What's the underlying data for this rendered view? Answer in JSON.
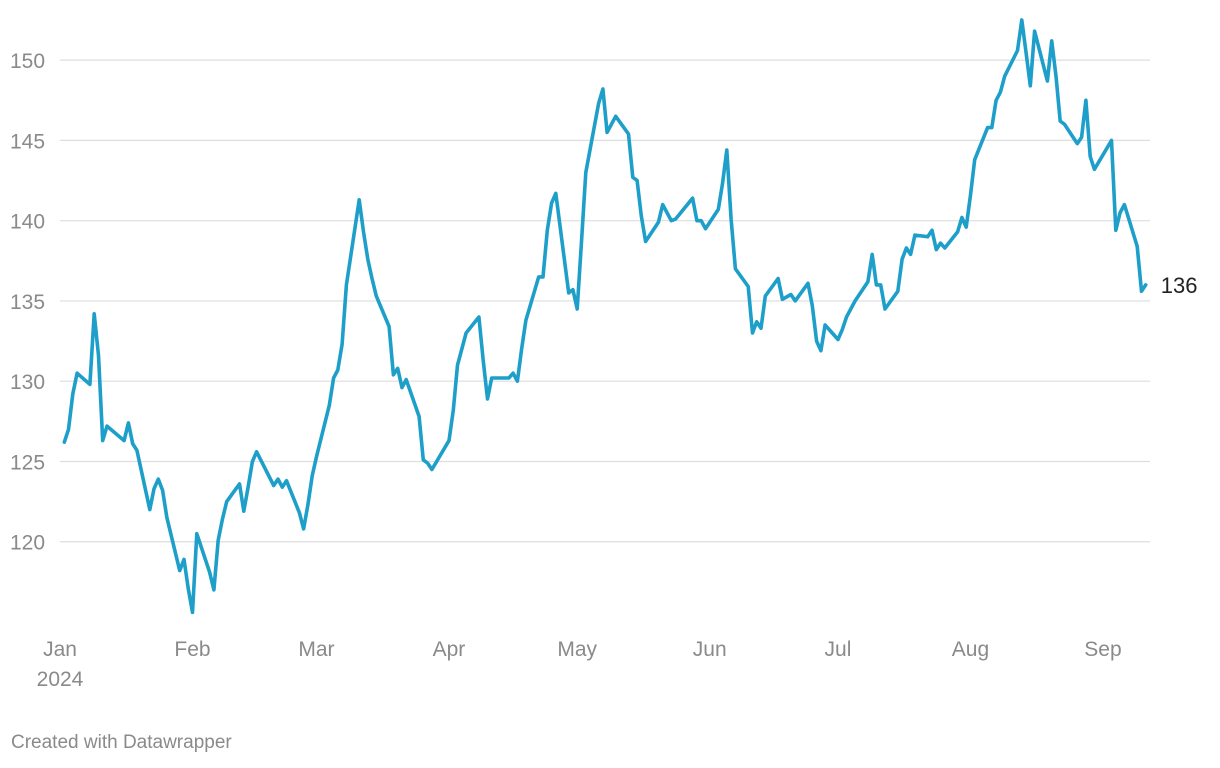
{
  "chart_data": {
    "type": "line",
    "title": "",
    "xlabel": "",
    "ylabel": "",
    "grid": "horizontal",
    "legend": "none",
    "color": "#1d9fca",
    "ylim": [
      115,
      152.5
    ],
    "xlim": [
      "2024-01-01",
      "2024-09-12"
    ],
    "y_ticks": [
      120,
      125,
      130,
      135,
      140,
      145,
      150
    ],
    "x_ticks": [
      {
        "date": "2024-01-01",
        "label": "Jan",
        "sublabel": "2024"
      },
      {
        "date": "2024-02-01",
        "label": "Feb"
      },
      {
        "date": "2024-03-01",
        "label": "Mar"
      },
      {
        "date": "2024-04-01",
        "label": "Apr"
      },
      {
        "date": "2024-05-01",
        "label": "May"
      },
      {
        "date": "2024-06-01",
        "label": "Jun"
      },
      {
        "date": "2024-07-01",
        "label": "Jul"
      },
      {
        "date": "2024-08-01",
        "label": "Aug"
      },
      {
        "date": "2024-09-01",
        "label": "Sep"
      }
    ],
    "end_label": "136",
    "series": [
      {
        "x": [
          "2024-01-02",
          "2024-01-03",
          "2024-01-04",
          "2024-01-05",
          "2024-01-08",
          "2024-01-09",
          "2024-01-10",
          "2024-01-11",
          "2024-01-12",
          "2024-01-16",
          "2024-01-17",
          "2024-01-18",
          "2024-01-19",
          "2024-01-22",
          "2024-01-23",
          "2024-01-24",
          "2024-01-25",
          "2024-01-26",
          "2024-01-29",
          "2024-01-30",
          "2024-01-31",
          "2024-02-01",
          "2024-02-02",
          "2024-02-05",
          "2024-02-06",
          "2024-02-07",
          "2024-02-08",
          "2024-02-09",
          "2024-02-12",
          "2024-02-13",
          "2024-02-14",
          "2024-02-15",
          "2024-02-16",
          "2024-02-20",
          "2024-02-21",
          "2024-02-22",
          "2024-02-23",
          "2024-02-26",
          "2024-02-27",
          "2024-02-28",
          "2024-02-29",
          "2024-03-01",
          "2024-03-04",
          "2024-03-05",
          "2024-03-06",
          "2024-03-07",
          "2024-03-08",
          "2024-03-11",
          "2024-03-12",
          "2024-03-13",
          "2024-03-14",
          "2024-03-15",
          "2024-03-18",
          "2024-03-19",
          "2024-03-20",
          "2024-03-21",
          "2024-03-22",
          "2024-03-25",
          "2024-03-26",
          "2024-03-27",
          "2024-03-28",
          "2024-04-01",
          "2024-04-02",
          "2024-04-03",
          "2024-04-04",
          "2024-04-05",
          "2024-04-08",
          "2024-04-09",
          "2024-04-10",
          "2024-04-11",
          "2024-04-12",
          "2024-04-15",
          "2024-04-16",
          "2024-04-17",
          "2024-04-18",
          "2024-04-19",
          "2024-04-22",
          "2024-04-23",
          "2024-04-24",
          "2024-04-25",
          "2024-04-26",
          "2024-04-29",
          "2024-04-30",
          "2024-05-01",
          "2024-05-02",
          "2024-05-03",
          "2024-05-06",
          "2024-05-07",
          "2024-05-08",
          "2024-05-09",
          "2024-05-10",
          "2024-05-13",
          "2024-05-14",
          "2024-05-15",
          "2024-05-16",
          "2024-05-17",
          "2024-05-20",
          "2024-05-21",
          "2024-05-22",
          "2024-05-23",
          "2024-05-24",
          "2024-05-28",
          "2024-05-29",
          "2024-05-30",
          "2024-05-31",
          "2024-06-03",
          "2024-06-04",
          "2024-06-05",
          "2024-06-06",
          "2024-06-07",
          "2024-06-10",
          "2024-06-11",
          "2024-06-12",
          "2024-06-13",
          "2024-06-14",
          "2024-06-17",
          "2024-06-18",
          "2024-06-20",
          "2024-06-21",
          "2024-06-24",
          "2024-06-25",
          "2024-06-26",
          "2024-06-27",
          "2024-06-28",
          "2024-07-01",
          "2024-07-02",
          "2024-07-03",
          "2024-07-05",
          "2024-07-08",
          "2024-07-09",
          "2024-07-10",
          "2024-07-11",
          "2024-07-12",
          "2024-07-15",
          "2024-07-16",
          "2024-07-17",
          "2024-07-18",
          "2024-07-19",
          "2024-07-22",
          "2024-07-23",
          "2024-07-24",
          "2024-07-25",
          "2024-07-26",
          "2024-07-29",
          "2024-07-30",
          "2024-07-31",
          "2024-08-01",
          "2024-08-02",
          "2024-08-05",
          "2024-08-06",
          "2024-08-07",
          "2024-08-08",
          "2024-08-09",
          "2024-08-12",
          "2024-08-13",
          "2024-08-14",
          "2024-08-15",
          "2024-08-16",
          "2024-08-19",
          "2024-08-20",
          "2024-08-21",
          "2024-08-22",
          "2024-08-23",
          "2024-08-26",
          "2024-08-27",
          "2024-08-28",
          "2024-08-29",
          "2024-08-30",
          "2024-09-03",
          "2024-09-04",
          "2024-09-05",
          "2024-09-06",
          "2024-09-09",
          "2024-09-10",
          "2024-09-11"
        ],
        "y": [
          126.2,
          127,
          129.2,
          130.5,
          129.8,
          134.2,
          131.6,
          126.3,
          127.2,
          126.3,
          127.4,
          126.1,
          125.7,
          122.0,
          123.3,
          123.9,
          123.2,
          121.5,
          118.2,
          118.9,
          117.1,
          115.6,
          120.5,
          118.1,
          117.0,
          120.1,
          121.4,
          122.5,
          123.6,
          121.9,
          123.4,
          125.0,
          125.6,
          123.5,
          123.9,
          123.4,
          123.8,
          121.8,
          120.8,
          122.3,
          124.1,
          125.3,
          128.5,
          130.2,
          130.7,
          132.3,
          136.0,
          141.3,
          139.3,
          137.6,
          136.4,
          135.3,
          133.4,
          130.4,
          130.8,
          129.6,
          130.1,
          127.8,
          125.1,
          124.9,
          124.5,
          126.3,
          128.2,
          131.0,
          132.0,
          133.0,
          134.0,
          131.3,
          128.9,
          130.2,
          130.2,
          130.2,
          130.5,
          130.0,
          132.0,
          133.8,
          136.5,
          136.5,
          139.4,
          141.1,
          141.7,
          135.5,
          135.7,
          134.5,
          138.7,
          143.0,
          147.3,
          148.2,
          145.5,
          146.0,
          146.5,
          145.4,
          142.7,
          142.5,
          140.3,
          138.7,
          139.9,
          141.0,
          140.5,
          140.0,
          140.1,
          141.4,
          140.0,
          140.0,
          139.5,
          140.7,
          142.3,
          144.4,
          140.1,
          137.0,
          135.9,
          133.0,
          133.7,
          133.3,
          135.3,
          136.4,
          135.1,
          135.4,
          135.0,
          136.1,
          134.7,
          132.5,
          131.9,
          133.5,
          132.6,
          133.2,
          134.0,
          135.0,
          136.2,
          137.9,
          136.0,
          136.0,
          134.5,
          135.6,
          137.6,
          138.3,
          137.9,
          139.1,
          139.0,
          139.4,
          138.2,
          138.6,
          138.3,
          139.3,
          140.2,
          139.6,
          141.6,
          143.8,
          145.8,
          145.8,
          147.5,
          148.0,
          149.0,
          150.6,
          152.5,
          150.5,
          148.4,
          151.8,
          148.7,
          151.2,
          149.0,
          146.2,
          146.0,
          144.8,
          145.2,
          147.5,
          144.0,
          143.2,
          145.0,
          139.4,
          140.5,
          141.0,
          138.4,
          135.6,
          136.0
        ]
      }
    ]
  },
  "footer": {
    "credit": "Created with Datawrapper"
  }
}
